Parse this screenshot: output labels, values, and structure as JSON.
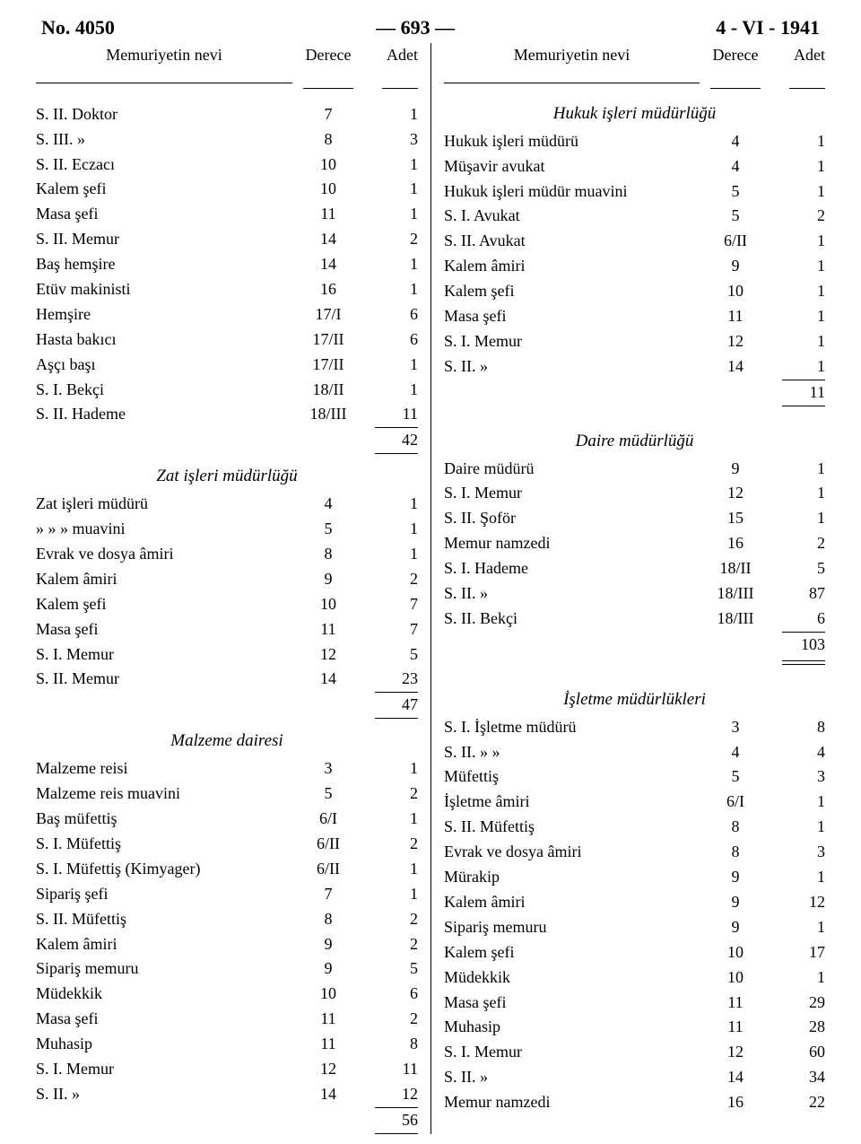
{
  "header": {
    "doc_no": "No. 4050",
    "page_no": "— 693 —",
    "date": "4 - VI - 1941"
  },
  "col_headers": {
    "name": "Memuriyetin nevi",
    "derece": "Derece",
    "adet": "Adet"
  },
  "left": {
    "sec1": {
      "rows": [
        {
          "n": "S. II. Doktor",
          "d": "7",
          "a": "1"
        },
        {
          "n": "S. III.   »",
          "d": "8",
          "a": "3"
        },
        {
          "n": "S. II. Eczacı",
          "d": "10",
          "a": "1"
        },
        {
          "n": "Kalem şefi",
          "d": "10",
          "a": "1"
        },
        {
          "n": "Masa şefi",
          "d": "11",
          "a": "1"
        },
        {
          "n": "S. II. Memur",
          "d": "14",
          "a": "2"
        },
        {
          "n": "Baş hemşire",
          "d": "14",
          "a": "1"
        },
        {
          "n": "Etüv makinisti",
          "d": "16",
          "a": "1"
        },
        {
          "n": "Hemşire",
          "d": "17/I",
          "a": "6"
        },
        {
          "n": "Hasta bakıcı",
          "d": "17/II",
          "a": "6"
        },
        {
          "n": "Aşçı başı",
          "d": "17/II",
          "a": "1"
        },
        {
          "n": "S. I. Bekçi",
          "d": "18/II",
          "a": "1"
        },
        {
          "n": "S. II. Hademe",
          "d": "18/III",
          "a": "11"
        }
      ],
      "total": "42"
    },
    "sec2": {
      "title": "Zat işleri müdürlüğü",
      "rows": [
        {
          "n": "Zat işleri müdürü",
          "d": "4",
          "a": "1"
        },
        {
          "n": "»        »        »    muavini",
          "d": "5",
          "a": "1"
        },
        {
          "n": "Evrak ve dosya âmiri",
          "d": "8",
          "a": "1"
        },
        {
          "n": "Kalem âmiri",
          "d": "9",
          "a": "2"
        },
        {
          "n": "Kalem şefi",
          "d": "10",
          "a": "7"
        },
        {
          "n": "Masa şefi",
          "d": "11",
          "a": "7"
        },
        {
          "n": "S. I. Memur",
          "d": "12",
          "a": "5"
        },
        {
          "n": "S. II. Memur",
          "d": "14",
          "a": "23"
        }
      ],
      "total": "47"
    },
    "sec3": {
      "title": "Malzeme dairesi",
      "rows": [
        {
          "n": "Malzeme reisi",
          "d": "3",
          "a": "1"
        },
        {
          "n": "Malzeme reis  muavini",
          "d": "5",
          "a": "2"
        },
        {
          "n": "Baş  müfettiş",
          "d": "6/I",
          "a": "1"
        },
        {
          "n": "S. I.  Müfettiş",
          "d": "6/II",
          "a": "2"
        },
        {
          "n": "S. I. Müfettiş (Kimyager)",
          "d": "6/II",
          "a": "1"
        },
        {
          "n": "Sipariş  şefi",
          "d": "7",
          "a": "1"
        },
        {
          "n": "S. II. Müfettiş",
          "d": "8",
          "a": "2"
        },
        {
          "n": "Kalem âmiri",
          "d": "9",
          "a": "2"
        },
        {
          "n": "Sipariş memuru",
          "d": "9",
          "a": "5"
        },
        {
          "n": "Müdekkik",
          "d": "10",
          "a": "6"
        },
        {
          "n": "Masa şefi",
          "d": "11",
          "a": "2"
        },
        {
          "n": "Muhasip",
          "d": "11",
          "a": "8"
        },
        {
          "n": "S. I. Memur",
          "d": "12",
          "a": "11"
        },
        {
          "n": "S. II.   »",
          "d": "14",
          "a": "12"
        }
      ],
      "total": "56"
    }
  },
  "right": {
    "sec1": {
      "title": "Hukuk işleri müdürlüğü",
      "rows": [
        {
          "n": "Hukuk işleri  müdürü",
          "d": "4",
          "a": "1"
        },
        {
          "n": "Müşavir avukat",
          "d": "4",
          "a": "1"
        },
        {
          "n": "Hukuk işleri müdür muavini",
          "d": "5",
          "a": "1"
        },
        {
          "n": "S. I. Avukat",
          "d": "5",
          "a": "2"
        },
        {
          "n": "S. II.  Avukat",
          "d": "6/II",
          "a": "1"
        },
        {
          "n": "Kalem âmiri",
          "d": "9",
          "a": "1"
        },
        {
          "n": "Kalem şefi",
          "d": "10",
          "a": "1"
        },
        {
          "n": "Masa şefi",
          "d": "11",
          "a": "1"
        },
        {
          "n": "S. I. Memur",
          "d": "12",
          "a": "1"
        },
        {
          "n": "S. II.    »",
          "d": "14",
          "a": "1"
        }
      ],
      "total": "11"
    },
    "sec2": {
      "title": "Daire müdürlüğü",
      "rows": [
        {
          "n": "Daire müdürü",
          "d": "9",
          "a": "1"
        },
        {
          "n": "S. I. Memur",
          "d": "12",
          "a": "1"
        },
        {
          "n": "S. II. Şoför",
          "d": "15",
          "a": "1"
        },
        {
          "n": "Memur namzedi",
          "d": "16",
          "a": "2"
        },
        {
          "n": "S. I. Hademe",
          "d": "18/II",
          "a": "5"
        },
        {
          "n": "S. II.    »",
          "d": "18/III",
          "a": "87"
        },
        {
          "n": "S. II. Bekçi",
          "d": "18/III",
          "a": "6"
        }
      ],
      "total": "103",
      "double_rule": true
    },
    "sec3": {
      "title": "İşletme müdürlükleri",
      "rows": [
        {
          "n": "S. I. İşletme müdürü",
          "d": "3",
          "a": "8"
        },
        {
          "n": "S. II.    »          »",
          "d": "4",
          "a": "4"
        },
        {
          "n": "Müfettiş",
          "d": "5",
          "a": "3"
        },
        {
          "n": "İşletme âmiri",
          "d": "6/I",
          "a": "1"
        },
        {
          "n": "S. II. Müfettiş",
          "d": "8",
          "a": "1"
        },
        {
          "n": "Evrak ve dosya âmiri",
          "d": "8",
          "a": "3"
        },
        {
          "n": "Mürakip",
          "d": "9",
          "a": "1"
        },
        {
          "n": "Kalem âmiri",
          "d": "9",
          "a": "12"
        },
        {
          "n": "Sipariş memuru",
          "d": "9",
          "a": "1"
        },
        {
          "n": "Kalem şefi",
          "d": "10",
          "a": "17"
        },
        {
          "n": "Müdekkik",
          "d": "10",
          "a": "1"
        },
        {
          "n": "Masa şefi",
          "d": "11",
          "a": "29"
        },
        {
          "n": "Muhasip",
          "d": "11",
          "a": "28"
        },
        {
          "n": "S. I. Memur",
          "d": "12",
          "a": "60"
        },
        {
          "n": "S. II.   »",
          "d": "14",
          "a": "34"
        },
        {
          "n": "Memur namzedi",
          "d": "16",
          "a": "22"
        }
      ]
    }
  }
}
